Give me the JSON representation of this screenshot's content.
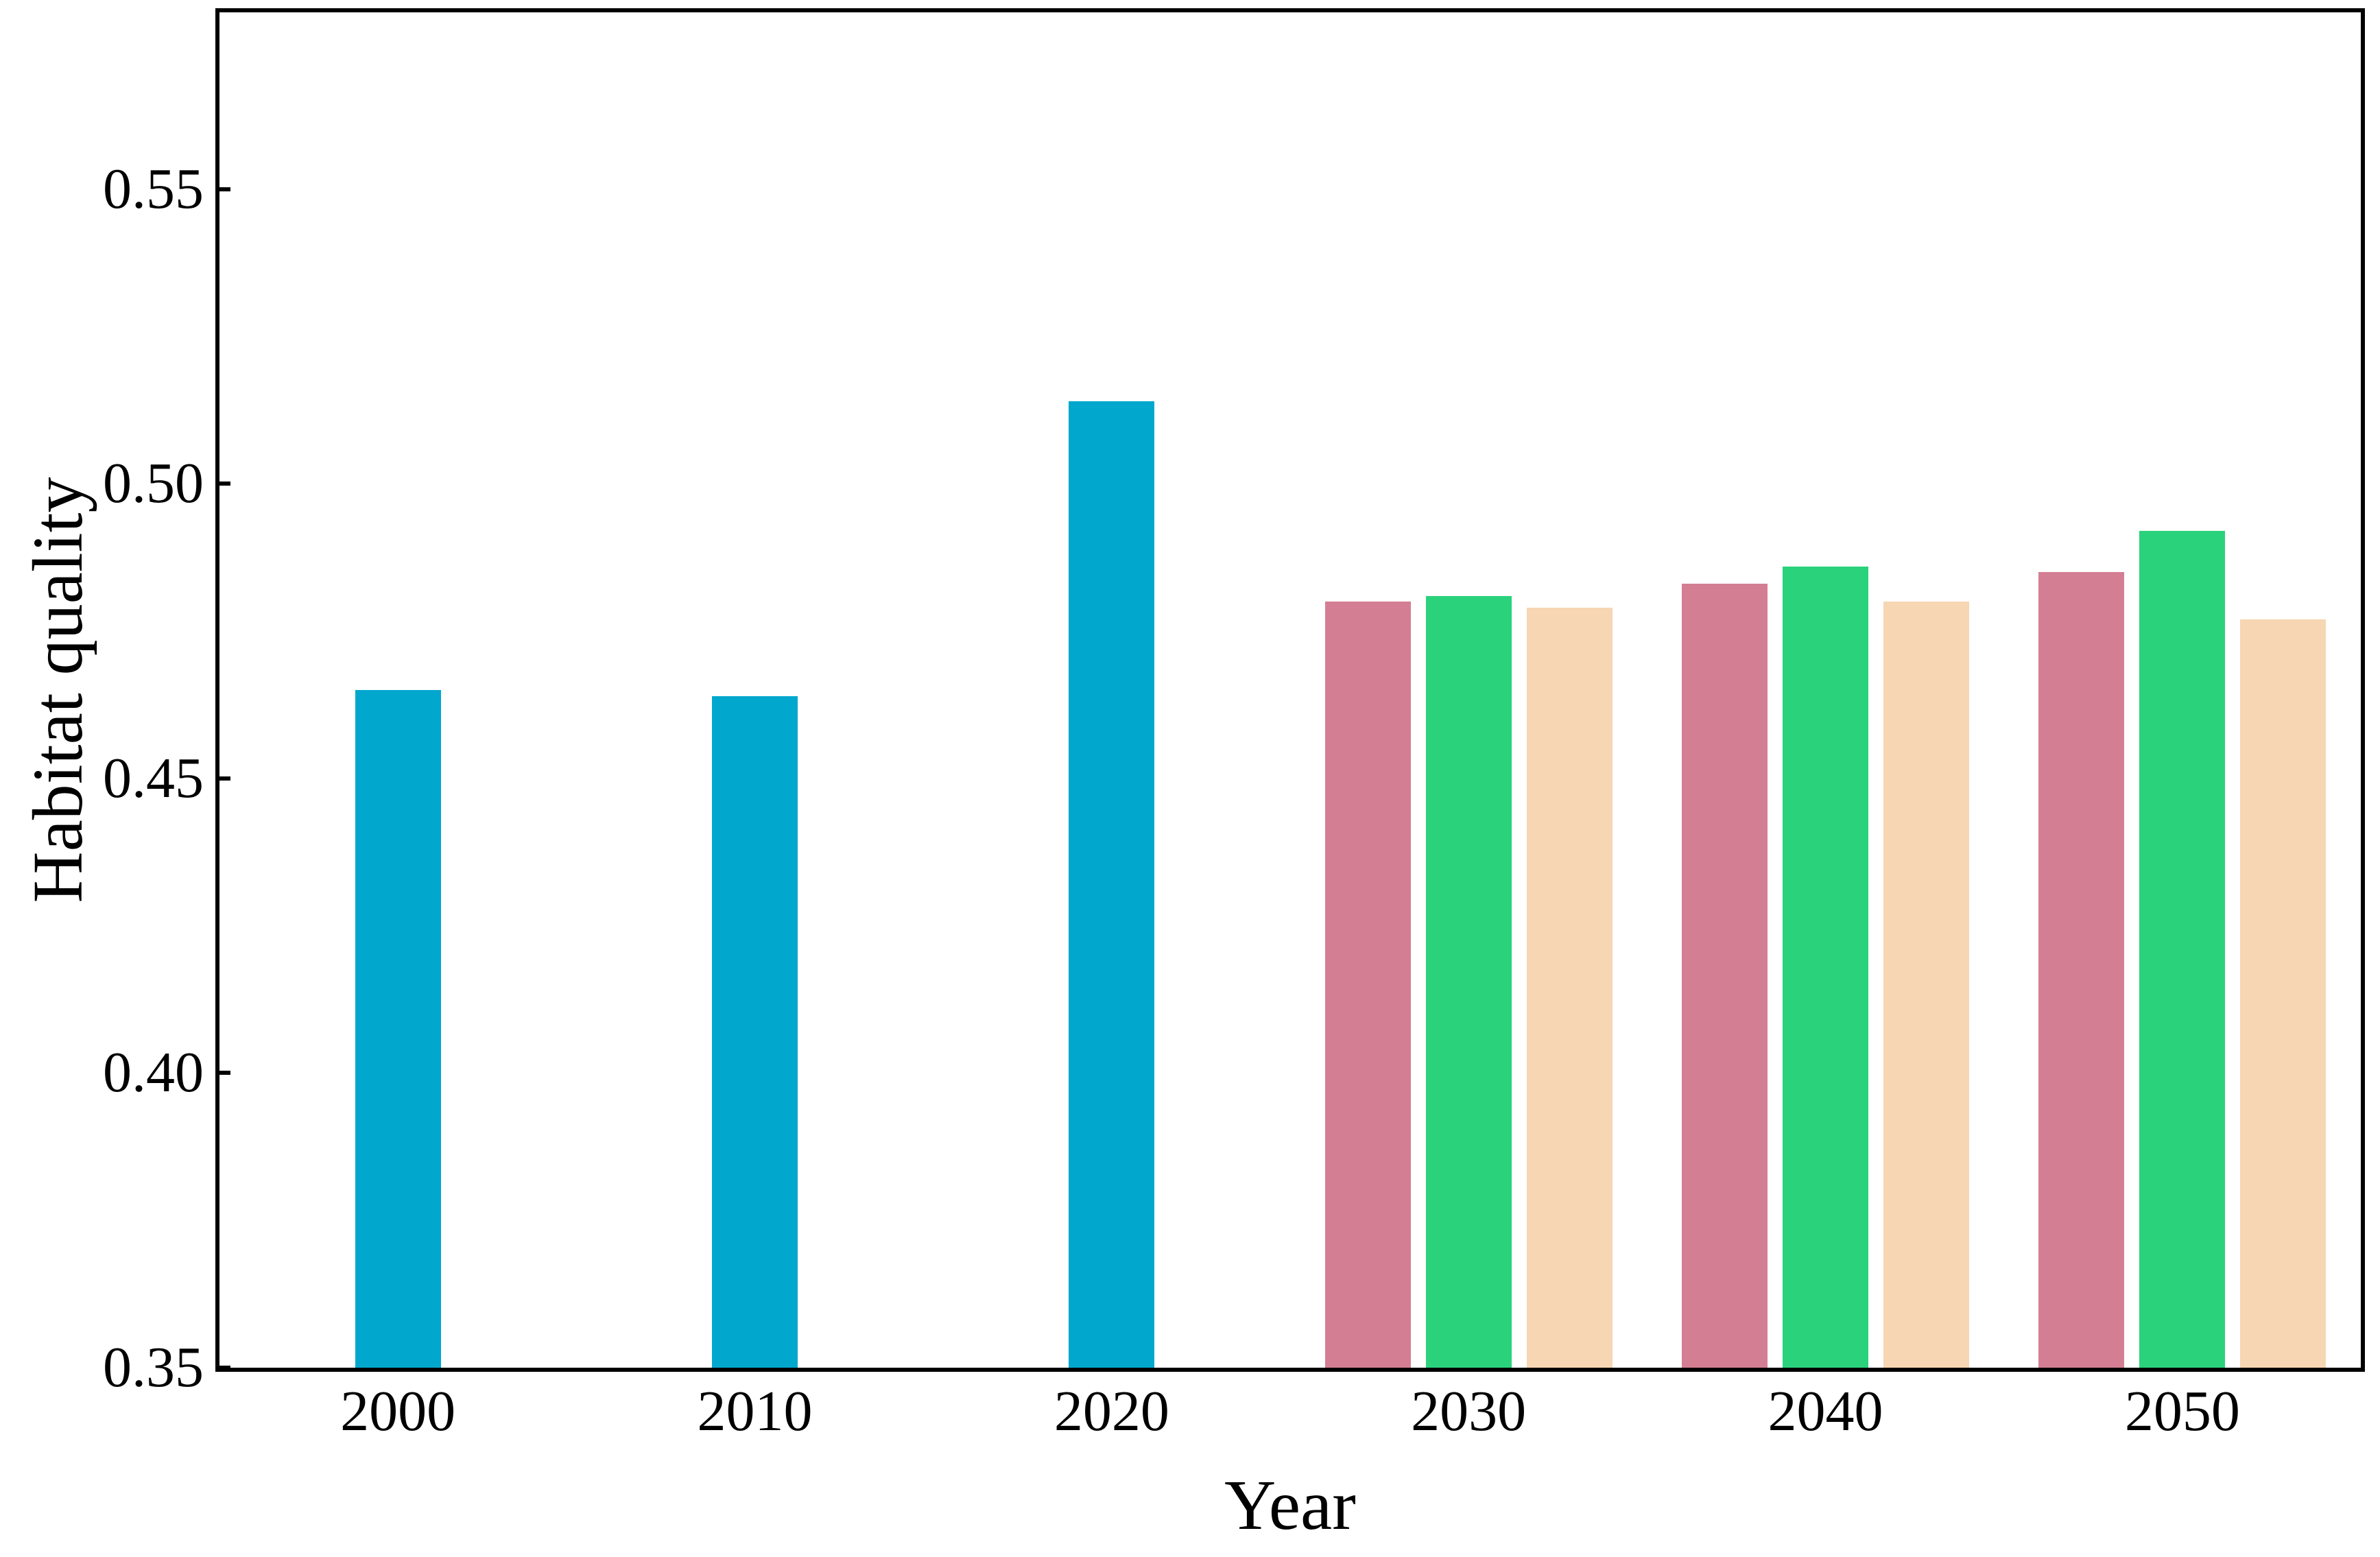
{
  "figure": {
    "background": "#ffffff",
    "frame_color": "#000000"
  },
  "chart_data": {
    "type": "bar",
    "title": "",
    "xlabel": "Year",
    "ylabel": "Habitat quality",
    "ylim": [
      0.35,
      0.58
    ],
    "yticks": [
      {
        "label": "0.35",
        "value": 0.35
      },
      {
        "label": "0.40",
        "value": 0.4
      },
      {
        "label": "0.45",
        "value": 0.45
      },
      {
        "label": "0.50",
        "value": 0.5
      },
      {
        "label": "0.55",
        "value": 0.55
      }
    ],
    "categories": [
      "2000",
      "2010",
      "2020",
      "2030",
      "2040",
      "2050"
    ],
    "series": [
      {
        "name": "observed-blue",
        "color": "#02A7CE",
        "values": [
          0.465,
          0.464,
          0.514,
          null,
          null,
          null
        ]
      },
      {
        "name": "scenario-pink",
        "color": "#D47E93",
        "values": [
          null,
          null,
          null,
          0.48,
          0.483,
          0.485
        ]
      },
      {
        "name": "scenario-green",
        "color": "#2AD27C",
        "values": [
          null,
          null,
          null,
          0.481,
          0.486,
          0.492
        ]
      },
      {
        "name": "scenario-tan",
        "color": "#F7D6B3",
        "values": [
          null,
          null,
          null,
          0.479,
          0.48,
          0.477
        ]
      }
    ],
    "grid": false,
    "legend": "none",
    "tick_direction": "in",
    "axis_color": "#000000"
  }
}
